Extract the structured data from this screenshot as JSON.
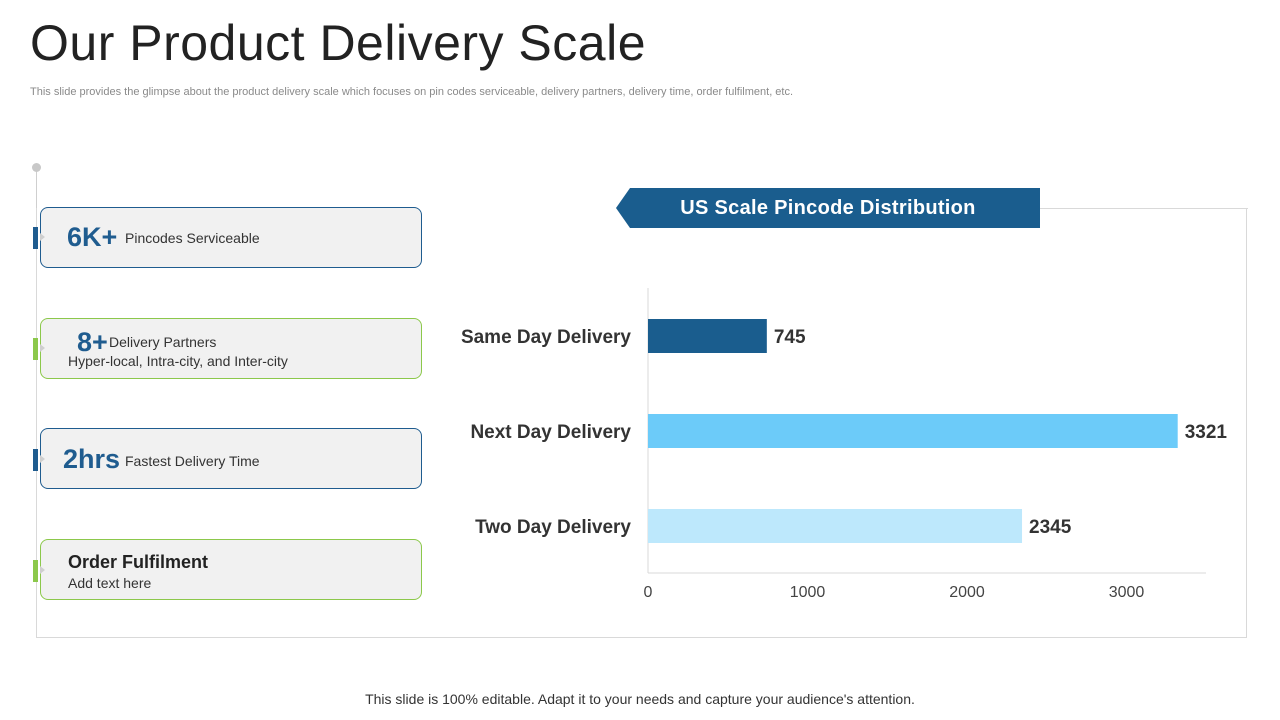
{
  "slide": {
    "title": "Our Product Delivery Scale",
    "subtitle": "This slide provides the glimpse about the product delivery scale which focuses on pin codes serviceable, delivery partners, delivery time, order fulfilment, etc.",
    "footer": "This slide is 100% editable. Adapt it to your needs and capture your audience's attention."
  },
  "cards": [
    {
      "value": "6K+",
      "label": "Pincodes Serviceable",
      "accent": "#1f5c8f"
    },
    {
      "value": "8+",
      "label": "Delivery Partners",
      "detail": "Hyper-local, Intra-city, and Inter-city",
      "accent": "#8cc84b"
    },
    {
      "value": "2hrs",
      "label": "Fastest Delivery Time",
      "accent": "#1f5c8f"
    },
    {
      "title": "Order Fulfilment",
      "detail": "Add text here",
      "accent": "#8cc84b"
    }
  ],
  "chart_data": {
    "type": "bar",
    "orientation": "horizontal",
    "title": "US Scale Pincode Distribution",
    "categories": [
      "Same Day Delivery",
      "Next Day Delivery",
      "Two Day Delivery"
    ],
    "values": [
      745,
      3321,
      2345
    ],
    "bar_colors": [
      "#1a5d8e",
      "#6ccbf9",
      "#bde8fc"
    ],
    "xlim": [
      0,
      3500
    ],
    "xticks": [
      0,
      1000,
      2000,
      3000
    ],
    "grid": false,
    "data_labels": true
  },
  "colors": {
    "banner": "#1a5d8e",
    "blue_accent": "#1f5c8f",
    "green_accent": "#8cc84b"
  }
}
